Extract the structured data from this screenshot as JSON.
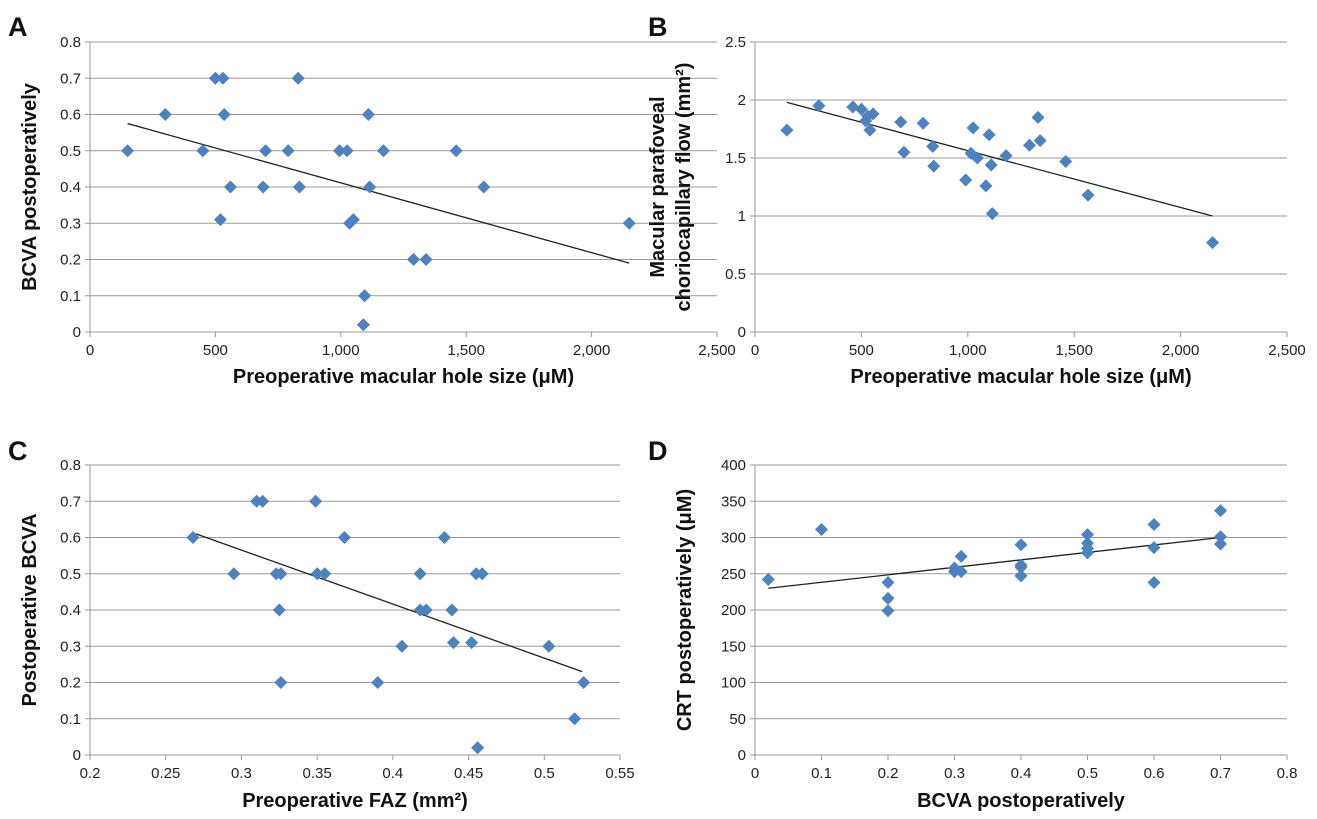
{
  "colors": {
    "marker": "#4f81bd",
    "trendline": "#222222",
    "grid": "#9a9a9a",
    "text": "#111111"
  },
  "chart_data": [
    {
      "type": "scatter",
      "panel_label": "A",
      "xlabel": "Preoperative macular hole size (μM)",
      "ylabel": "BCVA postoperatively",
      "xlim": [
        0,
        2500
      ],
      "ylim": [
        0,
        0.8
      ],
      "xticks": [
        "0",
        "500",
        "1,000",
        "1,500",
        "2,000",
        "2,500"
      ],
      "yticks": [
        "0",
        "0.1",
        "0.2",
        "0.3",
        "0.4",
        "0.5",
        "0.6",
        "0.7",
        "0.8"
      ],
      "grid": "horizontal",
      "trendline": [
        [
          150,
          0.575
        ],
        [
          2150,
          0.19
        ]
      ],
      "points": [
        [
          150,
          0.5
        ],
        [
          300,
          0.6
        ],
        [
          450,
          0.5
        ],
        [
          500,
          0.7
        ],
        [
          520,
          0.31
        ],
        [
          530,
          0.7
        ],
        [
          535,
          0.6
        ],
        [
          560,
          0.4
        ],
        [
          690,
          0.4
        ],
        [
          700,
          0.5
        ],
        [
          790,
          0.5
        ],
        [
          830,
          0.7
        ],
        [
          835,
          0.4
        ],
        [
          995,
          0.5
        ],
        [
          1025,
          0.5
        ],
        [
          1035,
          0.3
        ],
        [
          1050,
          0.31
        ],
        [
          1090,
          0.02
        ],
        [
          1095,
          0.1
        ],
        [
          1110,
          0.6
        ],
        [
          1115,
          0.4
        ],
        [
          1170,
          0.5
        ],
        [
          1290,
          0.2
        ],
        [
          1340,
          0.2
        ],
        [
          1460,
          0.5
        ],
        [
          1570,
          0.4
        ],
        [
          2150,
          0.3
        ]
      ]
    },
    {
      "type": "scatter",
      "panel_label": "B",
      "xlabel": "Preoperative macular hole size (μM)",
      "ylabel_lines": [
        "Macular parafoveal",
        "choriocapillary flow (mm²)"
      ],
      "xlim": [
        0,
        2500
      ],
      "ylim": [
        0,
        2.5
      ],
      "xticks": [
        "0",
        "500",
        "1,000",
        "1,500",
        "2,000",
        "2,500"
      ],
      "yticks": [
        "0",
        "0.5",
        "1",
        "1.5",
        "2",
        "2.5"
      ],
      "grid": "horizontal",
      "trendline": [
        [
          150,
          1.98
        ],
        [
          2150,
          1.0
        ]
      ],
      "points": [
        [
          150,
          1.74
        ],
        [
          300,
          1.95
        ],
        [
          460,
          1.94
        ],
        [
          500,
          1.92
        ],
        [
          520,
          1.82
        ],
        [
          530,
          1.86
        ],
        [
          540,
          1.74
        ],
        [
          555,
          1.88
        ],
        [
          685,
          1.81
        ],
        [
          700,
          1.55
        ],
        [
          790,
          1.8
        ],
        [
          835,
          1.6
        ],
        [
          840,
          1.43
        ],
        [
          990,
          1.31
        ],
        [
          1015,
          1.54
        ],
        [
          1025,
          1.76
        ],
        [
          1045,
          1.5
        ],
        [
          1085,
          1.26
        ],
        [
          1100,
          1.7
        ],
        [
          1110,
          1.44
        ],
        [
          1115,
          1.02
        ],
        [
          1180,
          1.52
        ],
        [
          1290,
          1.61
        ],
        [
          1330,
          1.85
        ],
        [
          1340,
          1.65
        ],
        [
          1460,
          1.47
        ],
        [
          1565,
          1.18
        ],
        [
          2150,
          0.77
        ]
      ]
    },
    {
      "type": "scatter",
      "panel_label": "C",
      "xlabel": "Preoperative FAZ (mm²)",
      "ylabel": "Postoperative BCVA",
      "xlim": [
        0.2,
        0.55
      ],
      "ylim": [
        0,
        0.8
      ],
      "xticks": [
        "0.2",
        "0.25",
        "0.3",
        "0.35",
        "0.4",
        "0.45",
        "0.5",
        "0.55"
      ],
      "yticks": [
        "0",
        "0.1",
        "0.2",
        "0.3",
        "0.4",
        "0.5",
        "0.6",
        "0.7",
        "0.8"
      ],
      "grid": "horizontal",
      "trendline": [
        [
          0.27,
          0.61
        ],
        [
          0.525,
          0.23
        ]
      ],
      "points": [
        [
          0.268,
          0.6
        ],
        [
          0.295,
          0.5
        ],
        [
          0.31,
          0.7
        ],
        [
          0.314,
          0.7
        ],
        [
          0.323,
          0.5
        ],
        [
          0.326,
          0.5
        ],
        [
          0.325,
          0.4
        ],
        [
          0.326,
          0.2
        ],
        [
          0.349,
          0.7
        ],
        [
          0.35,
          0.5
        ],
        [
          0.355,
          0.5
        ],
        [
          0.368,
          0.6
        ],
        [
          0.39,
          0.2
        ],
        [
          0.406,
          0.3
        ],
        [
          0.418,
          0.4
        ],
        [
          0.418,
          0.5
        ],
        [
          0.422,
          0.4
        ],
        [
          0.434,
          0.6
        ],
        [
          0.439,
          0.4
        ],
        [
          0.44,
          0.31
        ],
        [
          0.452,
          0.31
        ],
        [
          0.455,
          0.5
        ],
        [
          0.456,
          0.02
        ],
        [
          0.459,
          0.5
        ],
        [
          0.503,
          0.3
        ],
        [
          0.52,
          0.1
        ],
        [
          0.526,
          0.2
        ]
      ]
    },
    {
      "type": "scatter",
      "panel_label": "D",
      "xlabel": "BCVA postoperatively",
      "ylabel": "CRT postoperatively (μM)",
      "xlim": [
        0,
        0.8
      ],
      "ylim": [
        0,
        400
      ],
      "xticks": [
        "0",
        "0.1",
        "0.2",
        "0.3",
        "0.4",
        "0.5",
        "0.6",
        "0.7",
        "0.8"
      ],
      "yticks": [
        "0",
        "50",
        "100",
        "150",
        "200",
        "250",
        "300",
        "350",
        "400"
      ],
      "grid": "horizontal",
      "trendline": [
        [
          0.02,
          230
        ],
        [
          0.7,
          300
        ]
      ],
      "points": [
        [
          0.02,
          242
        ],
        [
          0.1,
          311
        ],
        [
          0.2,
          238
        ],
        [
          0.2,
          216
        ],
        [
          0.2,
          199
        ],
        [
          0.3,
          258
        ],
        [
          0.3,
          253
        ],
        [
          0.31,
          274
        ],
        [
          0.31,
          253
        ],
        [
          0.4,
          290
        ],
        [
          0.4,
          262
        ],
        [
          0.4,
          259
        ],
        [
          0.4,
          247
        ],
        [
          0.5,
          304
        ],
        [
          0.5,
          292
        ],
        [
          0.5,
          285
        ],
        [
          0.5,
          279
        ],
        [
          0.6,
          318
        ],
        [
          0.6,
          286
        ],
        [
          0.6,
          238
        ],
        [
          0.7,
          337
        ],
        [
          0.7,
          301
        ],
        [
          0.7,
          291
        ]
      ]
    }
  ]
}
